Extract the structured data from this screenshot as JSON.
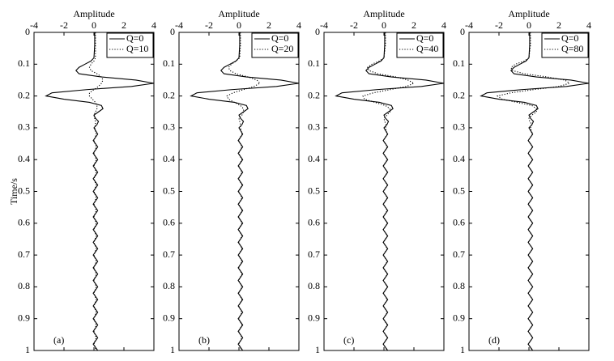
{
  "chart_data": [
    {
      "type": "line",
      "swap_axes": true,
      "xlabel": "Amplitude",
      "ylabel": "Time/s",
      "label": "(a)",
      "x": [
        0,
        0.04,
        0.08,
        0.09,
        0.1,
        0.11,
        0.12,
        0.13,
        0.14,
        0.15,
        0.16,
        0.17,
        0.18,
        0.19,
        0.2,
        0.21,
        0.22,
        0.23,
        0.24,
        0.25,
        0.26,
        0.27,
        0.28,
        0.29,
        0.3,
        0.32,
        0.34,
        0.36,
        0.38,
        0.4,
        0.42,
        0.44,
        0.46,
        0.48,
        0.5,
        0.52,
        0.54,
        0.56,
        0.58,
        0.6,
        0.62,
        0.64,
        0.66,
        0.68,
        0.7,
        0.72,
        0.74,
        0.76,
        0.78,
        0.8,
        0.82,
        0.84,
        0.86,
        0.88,
        0.9,
        0.92,
        0.94,
        0.96,
        0.98,
        1
      ],
      "series": [
        {
          "name": "Q=0",
          "color": "#000000",
          "style": "solid",
          "values": [
            0.05,
            0.05,
            0.0,
            -0.2,
            -0.6,
            -1.0,
            -1.2,
            -1.0,
            0.5,
            2.8,
            4.0,
            2.5,
            -0.5,
            -2.8,
            -3.2,
            -2.0,
            -0.3,
            0.5,
            0.6,
            0.3,
            0.0,
            0.1,
            0.3,
            0.2,
            0.0,
            0.25,
            -0.05,
            0.25,
            -0.05,
            0.25,
            -0.05,
            0.25,
            -0.05,
            0.25,
            -0.05,
            0.25,
            -0.05,
            0.25,
            -0.05,
            0.25,
            -0.05,
            0.25,
            -0.05,
            0.25,
            -0.05,
            0.25,
            -0.05,
            0.25,
            -0.05,
            0.25,
            -0.05,
            0.25,
            -0.05,
            0.25,
            -0.05,
            0.25,
            -0.05,
            0.25,
            -0.05,
            0.25
          ]
        },
        {
          "name": "Q=10",
          "color": "#000000",
          "style": "dotted",
          "values": [
            0.1,
            0.1,
            0.1,
            0.0,
            -0.2,
            -0.3,
            -0.2,
            0.2,
            0.5,
            0.6,
            0.5,
            0.3,
            0.0,
            -0.3,
            -0.3,
            -0.1,
            0.1,
            0.2,
            0.2,
            0.1,
            0.0,
            0.05,
            0.1,
            0.1,
            0.05,
            0.15,
            0.0,
            0.15,
            0.0,
            0.15,
            0.0,
            0.15,
            0.0,
            0.15,
            0.0,
            0.15,
            0.0,
            0.15,
            0.0,
            0.15,
            0.0,
            0.15,
            0.0,
            0.15,
            0.0,
            0.15,
            0.0,
            0.15,
            0.0,
            0.15,
            0.0,
            0.15,
            0.0,
            0.15,
            0.0,
            0.15,
            0.0,
            0.15,
            0.0,
            0.15
          ]
        }
      ],
      "xlim": [
        0,
        1
      ],
      "xticks": [
        0,
        0.1,
        0.2,
        0.3,
        0.4,
        0.5,
        0.6,
        0.7,
        0.8,
        0.9,
        1
      ],
      "ylim": [
        -4,
        4
      ],
      "yticks": [
        -4,
        -2,
        0,
        2,
        4
      ]
    },
    {
      "type": "line",
      "swap_axes": true,
      "xlabel": "Amplitude",
      "label": "(b)",
      "x": [
        0,
        0.04,
        0.08,
        0.09,
        0.1,
        0.11,
        0.12,
        0.13,
        0.14,
        0.15,
        0.16,
        0.17,
        0.18,
        0.19,
        0.2,
        0.21,
        0.22,
        0.23,
        0.24,
        0.25,
        0.26,
        0.27,
        0.28,
        0.29,
        0.3,
        0.32,
        0.34,
        0.36,
        0.38,
        0.4,
        0.42,
        0.44,
        0.46,
        0.48,
        0.5,
        0.52,
        0.54,
        0.56,
        0.58,
        0.6,
        0.62,
        0.64,
        0.66,
        0.68,
        0.7,
        0.72,
        0.74,
        0.76,
        0.78,
        0.8,
        0.82,
        0.84,
        0.86,
        0.88,
        0.9,
        0.92,
        0.94,
        0.96,
        0.98,
        1
      ],
      "series": [
        {
          "name": "Q=0",
          "color": "#000000",
          "style": "solid",
          "values": [
            0.05,
            0.05,
            0.0,
            -0.2,
            -0.6,
            -1.0,
            -1.2,
            -1.0,
            0.5,
            2.8,
            4.0,
            2.5,
            -0.5,
            -2.8,
            -3.2,
            -2.0,
            -0.3,
            0.5,
            0.6,
            0.3,
            0.0,
            0.1,
            0.3,
            0.2,
            0.0,
            0.25,
            -0.05,
            0.25,
            -0.05,
            0.25,
            -0.05,
            0.25,
            -0.05,
            0.25,
            -0.05,
            0.25,
            -0.05,
            0.25,
            -0.05,
            0.25,
            -0.05,
            0.25,
            -0.05,
            0.25,
            -0.05,
            0.25,
            -0.05,
            0.25,
            -0.05,
            0.25,
            -0.05,
            0.25,
            -0.05,
            0.25,
            -0.05,
            0.25,
            -0.05,
            0.25,
            -0.05,
            0.25
          ]
        },
        {
          "name": "Q=20",
          "color": "#000000",
          "style": "dotted",
          "values": [
            0.1,
            0.1,
            0.05,
            -0.2,
            -0.5,
            -0.7,
            -0.6,
            -0.2,
            0.6,
            1.2,
            1.4,
            1.0,
            0.3,
            -0.4,
            -0.8,
            -0.7,
            -0.3,
            0.1,
            0.3,
            0.3,
            0.2,
            0.0,
            0.05,
            0.1,
            0.1,
            0.2,
            -0.02,
            0.2,
            -0.02,
            0.2,
            -0.02,
            0.2,
            -0.02,
            0.2,
            -0.02,
            0.2,
            -0.02,
            0.2,
            -0.02,
            0.2,
            -0.02,
            0.2,
            -0.02,
            0.2,
            -0.02,
            0.2,
            -0.02,
            0.2,
            -0.02,
            0.2,
            -0.02,
            0.2,
            -0.02,
            0.2,
            -0.02,
            0.2,
            -0.02,
            0.2,
            -0.02,
            0.2
          ]
        }
      ],
      "xlim": [
        0,
        1
      ],
      "xticks": [
        0,
        0.1,
        0.2,
        0.3,
        0.4,
        0.5,
        0.6,
        0.7,
        0.8,
        0.9,
        1
      ],
      "ylim": [
        -4,
        4
      ],
      "yticks": [
        -4,
        -2,
        0,
        2,
        4
      ]
    },
    {
      "type": "line",
      "swap_axes": true,
      "xlabel": "Amplitude",
      "label": "(c)",
      "x": [
        0,
        0.04,
        0.08,
        0.09,
        0.1,
        0.11,
        0.12,
        0.13,
        0.14,
        0.15,
        0.16,
        0.17,
        0.18,
        0.19,
        0.2,
        0.21,
        0.22,
        0.23,
        0.24,
        0.25,
        0.26,
        0.27,
        0.28,
        0.29,
        0.3,
        0.32,
        0.34,
        0.36,
        0.38,
        0.4,
        0.42,
        0.44,
        0.46,
        0.48,
        0.5,
        0.52,
        0.54,
        0.56,
        0.58,
        0.6,
        0.62,
        0.64,
        0.66,
        0.68,
        0.7,
        0.72,
        0.74,
        0.76,
        0.78,
        0.8,
        0.82,
        0.84,
        0.86,
        0.88,
        0.9,
        0.92,
        0.94,
        0.96,
        0.98,
        1
      ],
      "series": [
        {
          "name": "Q=0",
          "color": "#000000",
          "style": "solid",
          "values": [
            0.05,
            0.05,
            0.0,
            -0.2,
            -0.6,
            -1.0,
            -1.2,
            -1.0,
            0.5,
            2.8,
            4.0,
            2.5,
            -0.5,
            -2.8,
            -3.2,
            -2.0,
            -0.3,
            0.5,
            0.6,
            0.3,
            0.0,
            0.1,
            0.3,
            0.2,
            0.0,
            0.25,
            -0.05,
            0.25,
            -0.05,
            0.25,
            -0.05,
            0.25,
            -0.05,
            0.25,
            -0.05,
            0.25,
            -0.05,
            0.25,
            -0.05,
            0.25,
            -0.05,
            0.25,
            -0.05,
            0.25,
            -0.05,
            0.25,
            -0.05,
            0.25,
            -0.05,
            0.25,
            -0.05,
            0.25,
            -0.05,
            0.25,
            -0.05,
            0.25,
            -0.05,
            0.25,
            -0.05,
            0.25
          ]
        },
        {
          "name": "Q=40",
          "color": "#000000",
          "style": "dotted",
          "values": [
            0.1,
            0.1,
            0.0,
            -0.3,
            -0.8,
            -1.1,
            -1.0,
            -0.4,
            0.8,
            1.6,
            2.0,
            1.5,
            0.4,
            -0.7,
            -1.4,
            -1.3,
            -0.6,
            0.1,
            0.4,
            0.4,
            0.2,
            0.0,
            0.05,
            0.15,
            0.1,
            0.22,
            -0.04,
            0.22,
            -0.04,
            0.22,
            -0.04,
            0.22,
            -0.04,
            0.22,
            -0.04,
            0.22,
            -0.04,
            0.22,
            -0.04,
            0.22,
            -0.04,
            0.22,
            -0.04,
            0.22,
            -0.04,
            0.22,
            -0.04,
            0.22,
            -0.04,
            0.22,
            -0.04,
            0.22,
            -0.04,
            0.22,
            -0.04,
            0.22,
            -0.04,
            0.22,
            -0.04,
            0.22
          ]
        }
      ],
      "xlim": [
        0,
        1
      ],
      "xticks": [
        0,
        0.1,
        0.2,
        0.3,
        0.4,
        0.5,
        0.6,
        0.7,
        0.8,
        0.9,
        1
      ],
      "ylim": [
        -4,
        4
      ],
      "yticks": [
        -4,
        -2,
        0,
        2,
        4
      ]
    },
    {
      "type": "line",
      "swap_axes": true,
      "xlabel": "Amplitude",
      "label": "(d)",
      "x": [
        0,
        0.04,
        0.08,
        0.09,
        0.1,
        0.11,
        0.12,
        0.13,
        0.14,
        0.15,
        0.16,
        0.17,
        0.18,
        0.19,
        0.2,
        0.21,
        0.22,
        0.23,
        0.24,
        0.25,
        0.26,
        0.27,
        0.28,
        0.29,
        0.3,
        0.32,
        0.34,
        0.36,
        0.38,
        0.4,
        0.42,
        0.44,
        0.46,
        0.48,
        0.5,
        0.52,
        0.54,
        0.56,
        0.58,
        0.6,
        0.62,
        0.64,
        0.66,
        0.68,
        0.7,
        0.72,
        0.74,
        0.76,
        0.78,
        0.8,
        0.82,
        0.84,
        0.86,
        0.88,
        0.9,
        0.92,
        0.94,
        0.96,
        0.98,
        1
      ],
      "series": [
        {
          "name": "Q=0",
          "color": "#000000",
          "style": "solid",
          "values": [
            0.05,
            0.05,
            0.0,
            -0.2,
            -0.6,
            -1.0,
            -1.2,
            -1.0,
            0.5,
            2.8,
            4.0,
            2.5,
            -0.5,
            -2.8,
            -3.2,
            -2.0,
            -0.3,
            0.5,
            0.6,
            0.3,
            0.0,
            0.1,
            0.3,
            0.2,
            0.0,
            0.25,
            -0.05,
            0.25,
            -0.05,
            0.25,
            -0.05,
            0.25,
            -0.05,
            0.25,
            -0.05,
            0.25,
            -0.05,
            0.25,
            -0.05,
            0.25,
            -0.05,
            0.25,
            -0.05,
            0.25,
            -0.05,
            0.25,
            -0.05,
            0.25,
            -0.05,
            0.25,
            -0.05,
            0.25,
            -0.05,
            0.25,
            -0.05,
            0.25,
            -0.05,
            0.25,
            -0.05,
            0.25
          ]
        },
        {
          "name": "Q=80",
          "color": "#000000",
          "style": "dotted",
          "values": [
            0.1,
            0.1,
            0.0,
            -0.3,
            -0.9,
            -1.2,
            -1.1,
            -0.3,
            1.2,
            2.4,
            2.7,
            2.0,
            0.3,
            -1.2,
            -2.1,
            -1.8,
            -0.8,
            0.2,
            0.5,
            0.5,
            0.2,
            0.0,
            0.05,
            0.2,
            0.1,
            0.24,
            -0.05,
            0.24,
            -0.05,
            0.24,
            -0.05,
            0.24,
            -0.05,
            0.24,
            -0.05,
            0.24,
            -0.05,
            0.24,
            -0.05,
            0.24,
            -0.05,
            0.24,
            -0.05,
            0.24,
            -0.05,
            0.24,
            -0.05,
            0.24,
            -0.05,
            0.24,
            -0.05,
            0.24,
            -0.05,
            0.24,
            -0.05,
            0.24,
            -0.05,
            0.24,
            -0.05,
            0.24
          ]
        }
      ],
      "xlim": [
        0,
        1
      ],
      "xticks": [
        0,
        0.1,
        0.2,
        0.3,
        0.4,
        0.5,
        0.6,
        0.7,
        0.8,
        0.9,
        1
      ],
      "ylim": [
        -4,
        4
      ],
      "yticks": [
        -4,
        -2,
        0,
        2,
        4
      ]
    }
  ]
}
